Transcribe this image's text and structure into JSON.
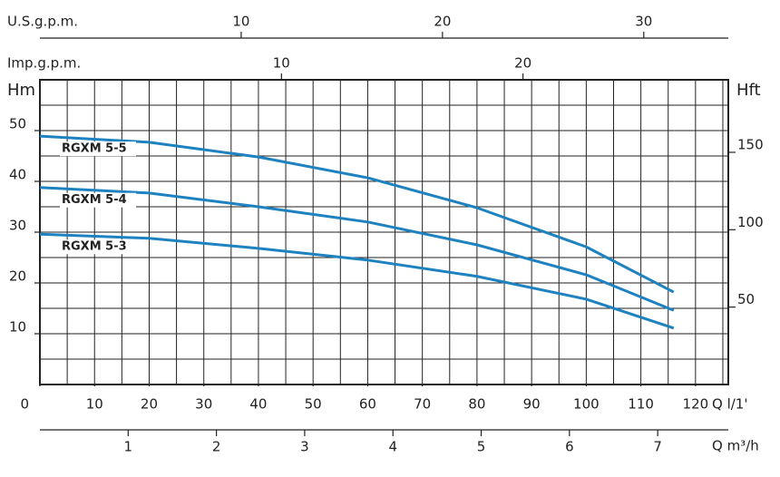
{
  "chart_data": {
    "type": "line",
    "x_label": "Q l/1'",
    "xlim": [
      0,
      126
    ],
    "xticks": [
      0,
      10,
      20,
      30,
      40,
      50,
      60,
      70,
      80,
      90,
      100,
      110,
      120
    ],
    "y_label": "Hm",
    "ylim": [
      0,
      60
    ],
    "yticks": [
      10,
      20,
      30,
      40,
      50
    ],
    "y2_label": "Hft",
    "y2lim": [
      0,
      196.85
    ],
    "y2ticks": [
      50,
      100,
      150
    ],
    "top_axes": [
      {
        "label": "U.S.g.p.m.",
        "xlim": [
          0,
          34.2
        ],
        "xticks": [
          10,
          20,
          30
        ]
      },
      {
        "label": "Imp.g.p.m.",
        "xlim": [
          0,
          28.5
        ],
        "xticks": [
          10,
          20
        ]
      }
    ],
    "bottom_axis2": {
      "label": "Q m³/h",
      "xlim": [
        0,
        7.8
      ],
      "xticks": [
        1,
        2,
        3,
        4,
        5,
        6,
        7
      ]
    },
    "grid": true,
    "x": [
      0,
      20,
      40,
      60,
      80,
      100,
      116
    ],
    "series": [
      {
        "name": "RGXM 5-5",
        "color": "#1e82c0",
        "values": [
          48.9,
          47.7,
          44.8,
          40.7,
          34.8,
          27.1,
          18.2
        ]
      },
      {
        "name": "RGXM 5-4",
        "color": "#1e82c0",
        "values": [
          38.8,
          37.7,
          35.0,
          32.0,
          27.5,
          21.6,
          14.6
        ]
      },
      {
        "name": "RGXM 5-3",
        "color": "#1e82c0",
        "values": [
          29.6,
          28.8,
          26.8,
          24.5,
          21.3,
          16.8,
          11.1
        ]
      }
    ]
  }
}
